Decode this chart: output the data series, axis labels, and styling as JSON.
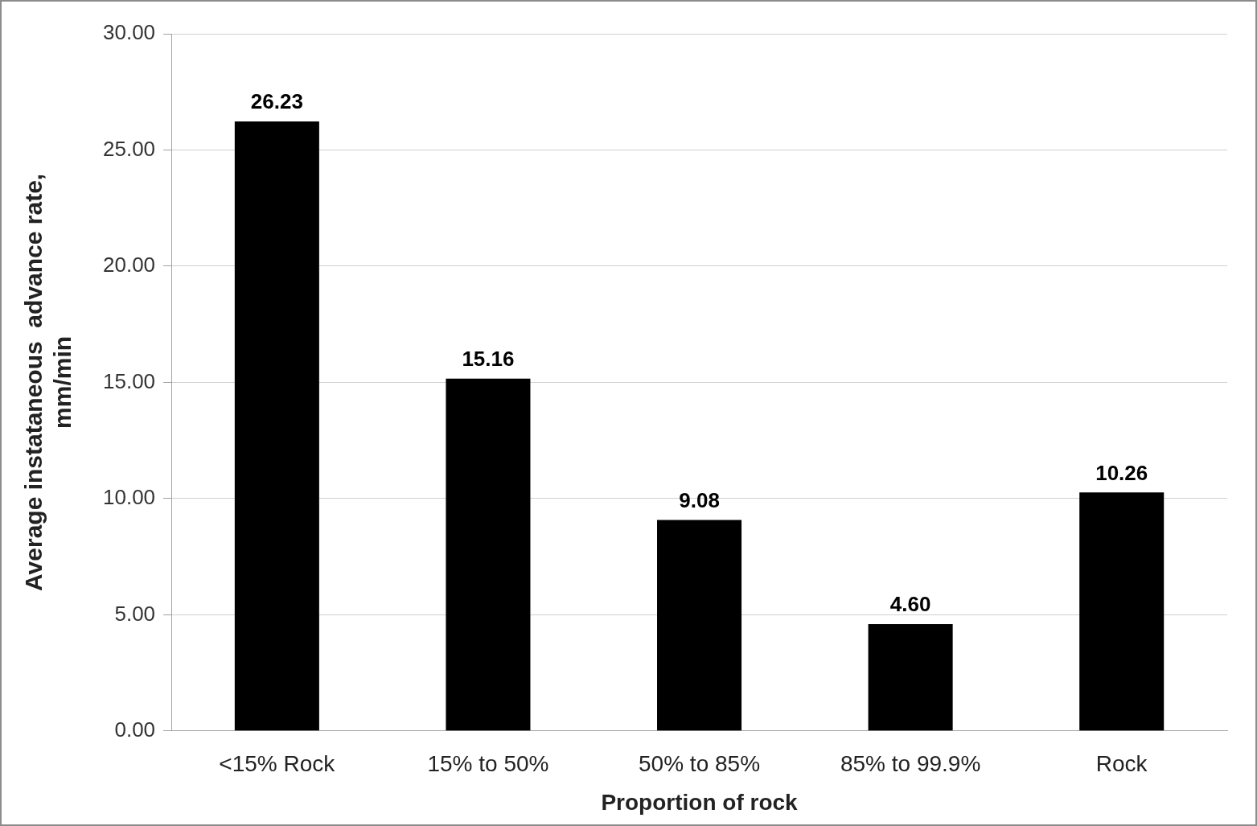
{
  "chart_data": {
    "type": "bar",
    "xlabel": "Proportion of rock",
    "ylabel": "Average instataneous  advance rate,\nmm/min",
    "categories": [
      "<15% Rock",
      "15% to 50%",
      "50% to 85%",
      "85% to 99.9%",
      "Rock"
    ],
    "values": [
      26.23,
      15.16,
      9.08,
      4.6,
      10.26
    ],
    "value_labels": [
      "26.23",
      "15.16",
      "9.08",
      "4.60",
      "10.26"
    ],
    "color": "#000000",
    "ylim": [
      0,
      30
    ],
    "yticks": [
      {
        "value": 0,
        "label": "0.00"
      },
      {
        "value": 5,
        "label": "5.00"
      },
      {
        "value": 10,
        "label": "10.00"
      },
      {
        "value": 15,
        "label": "15.00"
      },
      {
        "value": 20,
        "label": "20.00"
      },
      {
        "value": 25,
        "label": "25.00"
      },
      {
        "value": 30,
        "label": "30.00"
      }
    ],
    "grid": "y",
    "legend": false
  }
}
